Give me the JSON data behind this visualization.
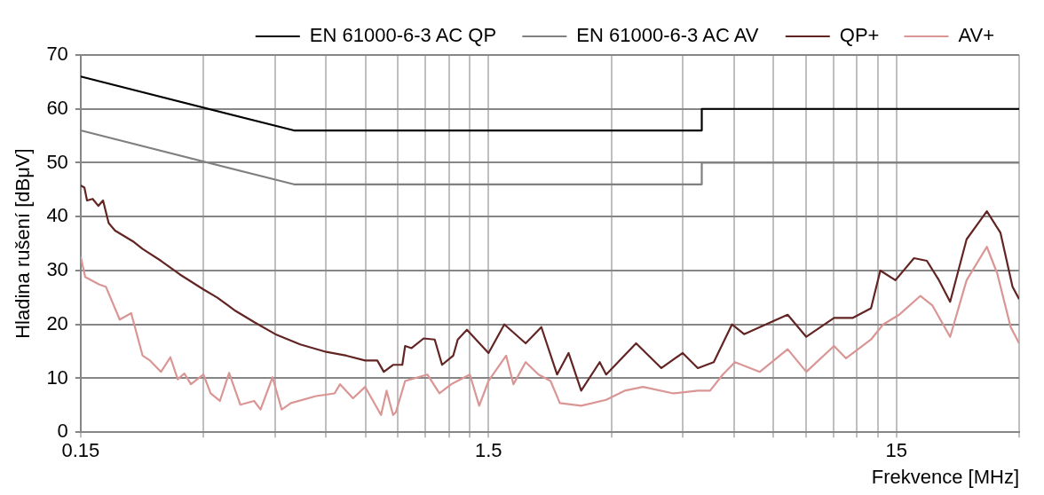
{
  "chart_data": {
    "type": "line",
    "xlabel": "Frekvence [MHz]",
    "ylabel": "Hladina rušení [dBμV]",
    "log": "x",
    "grid": true,
    "legend": "top",
    "marker": "none",
    "line_style": "solid",
    "xlim": [
      0.15,
      30
    ],
    "ylim": [
      0,
      70
    ],
    "xticks": [
      {
        "value": 0.15,
        "label": "0.15"
      },
      {
        "value": 0.3,
        "label": null
      },
      {
        "value": 0.45,
        "label": null
      },
      {
        "value": 0.6,
        "label": null
      },
      {
        "value": 0.75,
        "label": null
      },
      {
        "value": 0.9,
        "label": null
      },
      {
        "value": 1.05,
        "label": null
      },
      {
        "value": 1.2,
        "label": null
      },
      {
        "value": 1.35,
        "label": null
      },
      {
        "value": 1.5,
        "label": "1.5"
      },
      {
        "value": 3,
        "label": null
      },
      {
        "value": 4.5,
        "label": null
      },
      {
        "value": 6,
        "label": null
      },
      {
        "value": 7.5,
        "label": null
      },
      {
        "value": 9,
        "label": null
      },
      {
        "value": 10.5,
        "label": null
      },
      {
        "value": 12,
        "label": null
      },
      {
        "value": 13.5,
        "label": null
      },
      {
        "value": 15,
        "label": "15"
      },
      {
        "value": 30,
        "label": null
      }
    ],
    "yticks": [
      0,
      10,
      20,
      30,
      40,
      50,
      60,
      70
    ],
    "series": [
      {
        "name": "EN 61000-6-3 AC QP",
        "color": "#000000",
        "x": [
          0.15,
          0.5,
          5,
          5,
          30
        ],
        "values": [
          66,
          56,
          56,
          60,
          60
        ]
      },
      {
        "name": "EN 61000-6-3 AC AV",
        "color": "#808080",
        "x": [
          0.15,
          0.5,
          5,
          5,
          30
        ],
        "values": [
          56,
          46,
          46,
          50,
          50
        ]
      },
      {
        "name": "QP+",
        "color": "#632523",
        "x": [
          0.15,
          0.1532,
          0.1555,
          0.1605,
          0.1658,
          0.1702,
          0.1757,
          0.1822,
          0.2026,
          0.2128,
          0.2361,
          0.2623,
          0.3,
          0.3241,
          0.3597,
          0.4,
          0.45,
          0.5181,
          0.6,
          0.6729,
          0.7475,
          0.8006,
          0.8305,
          0.8751,
          0.9221,
          0.9367,
          0.9715,
          1.0398,
          1.107,
          1.154,
          1.229,
          1.261,
          1.328,
          1.5,
          1.64,
          1.85,
          2.021,
          2.209,
          2.357,
          2.531,
          2.81,
          2.914,
          3.451,
          3.98,
          4.49,
          4.89,
          5.35,
          5.93,
          6.35,
          6.94,
          8.12,
          9.02,
          10.55,
          11.71,
          13.0,
          13.7,
          14.92,
          16.57,
          17.82,
          19.08,
          20.32,
          22.3,
          25.0,
          27.0,
          28.9,
          30
        ],
        "values": [
          45.8,
          45.4,
          43,
          43.3,
          42,
          43,
          38.8,
          37.4,
          35.3,
          34,
          31.8,
          29.3,
          26.5,
          25,
          22.5,
          20.4,
          18.2,
          16.3,
          14.9,
          14.2,
          13.3,
          13.3,
          11.2,
          12.5,
          12.5,
          16,
          15.6,
          17.4,
          17.2,
          12.5,
          14.2,
          17.2,
          19,
          14.7,
          20,
          16.5,
          19.5,
          10.7,
          14.7,
          7.7,
          13,
          10.7,
          16.5,
          11.9,
          14.7,
          11.9,
          13,
          20,
          18.2,
          19.5,
          21.8,
          17.7,
          21.2,
          21.2,
          23,
          30,
          28.2,
          32.3,
          31.8,
          28.2,
          24.2,
          35.8,
          41,
          37,
          27,
          24.7
        ]
      },
      {
        "name": "AV+",
        "color": "#d99694",
        "x": [
          0.15,
          0.1539,
          0.1667,
          0.1729,
          0.187,
          0.1995,
          0.2128,
          0.2219,
          0.2361,
          0.2489,
          0.2595,
          0.2693,
          0.2795,
          0.3,
          0.3124,
          0.3292,
          0.3468,
          0.3693,
          0.3993,
          0.4141,
          0.4432,
          0.4667,
          0.4917,
          0.5664,
          0.6288,
          0.6488,
          0.698,
          0.7475,
          0.8176,
          0.8436,
          0.8751,
          0.889,
          0.9367,
          1.062,
          1.137,
          1.216,
          1.35,
          1.423,
          1.5,
          1.657,
          1.727,
          1.85,
          1.99,
          2.129,
          2.244,
          2.531,
          2.914,
          3.235,
          3.59,
          4.26,
          4.89,
          5.24,
          5.63,
          6.03,
          6.94,
          8.12,
          9.02,
          10.55,
          11.29,
          13.0,
          13.92,
          15.24,
          17.18,
          18.39,
          20.32,
          22.3,
          25.0,
          26.5,
          28.6,
          30
        ],
        "values": [
          32.6,
          28.8,
          27.4,
          27,
          20.9,
          22.1,
          14.2,
          13.3,
          11.2,
          13.9,
          9.8,
          10.9,
          8.9,
          10.7,
          7.2,
          5.8,
          11,
          5.1,
          5.8,
          4.2,
          10.2,
          4.2,
          5.4,
          6.7,
          7.2,
          8.9,
          6.3,
          8.4,
          3.2,
          7.7,
          3.2,
          3.7,
          9.5,
          10.7,
          7.2,
          8.9,
          10.7,
          4.9,
          9.5,
          14.2,
          8.9,
          13,
          10.7,
          9.5,
          5.4,
          4.9,
          6,
          7.7,
          8.4,
          7.2,
          7.7,
          7.7,
          10.7,
          13,
          11.2,
          15.4,
          11.2,
          16,
          13.7,
          17.2,
          20,
          21.8,
          25.3,
          23.5,
          17.7,
          28.2,
          34.4,
          29.5,
          19.5,
          16.5
        ]
      }
    ]
  }
}
